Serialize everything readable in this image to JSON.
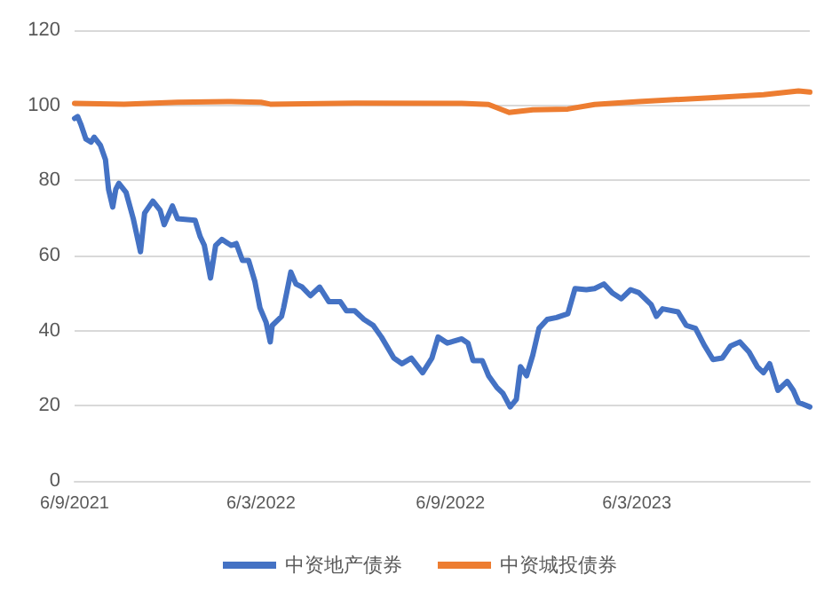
{
  "chart_data": {
    "type": "line",
    "xlim": [
      "2021-09-06",
      "2023-08-21"
    ],
    "xticks": [
      {
        "value": "2021-09-06",
        "label": "6/9/2021"
      },
      {
        "value": "2022-03-06",
        "label": "6/3/2022"
      },
      {
        "value": "2022-09-06",
        "label": "6/9/2022"
      },
      {
        "value": "2023-03-06",
        "label": "6/3/2023"
      }
    ],
    "ylim": [
      0,
      120
    ],
    "yticks": [
      0,
      20,
      40,
      60,
      80,
      100,
      120
    ],
    "grid": "y",
    "legend": "bottom",
    "marker": "none",
    "line_style": "solid",
    "series": [
      {
        "name": "中资地产债券",
        "color": "#4472c4",
        "x": [
          "2021-09-06",
          "2021-09-09",
          "2021-09-12",
          "2021-09-17",
          "2021-09-22",
          "2021-09-25",
          "2021-10-01",
          "2021-10-06",
          "2021-10-09",
          "2021-10-13",
          "2021-10-16",
          "2021-10-19",
          "2021-10-26",
          "2021-11-02",
          "2021-11-09",
          "2021-11-13",
          "2021-11-21",
          "2021-11-28",
          "2021-12-02",
          "2021-12-10",
          "2021-12-15",
          "2022-01-01",
          "2022-01-06",
          "2022-01-10",
          "2022-01-16",
          "2022-01-21",
          "2022-01-27",
          "2022-02-05",
          "2022-02-10",
          "2022-02-16",
          "2022-02-22",
          "2022-02-28",
          "2022-03-05",
          "2022-03-11",
          "2022-03-15",
          "2022-03-17",
          "2022-03-26",
          "2022-03-28",
          "2022-03-31",
          "2022-04-04",
          "2022-04-09",
          "2022-04-15",
          "2022-04-23",
          "2022-05-02",
          "2022-05-11",
          "2022-05-22",
          "2022-05-28",
          "2022-06-05",
          "2022-06-14",
          "2022-06-23",
          "2022-07-01",
          "2022-07-13",
          "2022-07-21",
          "2022-07-30",
          "2022-08-10",
          "2022-08-19",
          "2022-08-25",
          "2022-09-03",
          "2022-09-17",
          "2022-09-23",
          "2022-09-28",
          "2022-10-07",
          "2022-10-13",
          "2022-10-21",
          "2022-10-27",
          "2022-11-03",
          "2022-11-09",
          "2022-11-13",
          "2022-11-19",
          "2022-11-25",
          "2022-12-01",
          "2022-12-09",
          "2022-12-18",
          "2022-12-29",
          "2023-01-05",
          "2023-01-16",
          "2023-01-24",
          "2023-02-02",
          "2023-02-10",
          "2023-02-19",
          "2023-02-28",
          "2023-03-08",
          "2023-03-20",
          "2023-03-25",
          "2023-03-31",
          "2023-04-15",
          "2023-04-23",
          "2023-05-02",
          "2023-05-11",
          "2023-05-19",
          "2023-05-28",
          "2023-06-05",
          "2023-06-14",
          "2023-06-23",
          "2023-07-01",
          "2023-07-07",
          "2023-07-13",
          "2023-07-21",
          "2023-07-30",
          "2023-08-05",
          "2023-08-10",
          "2023-08-21"
        ],
        "values": [
          96.5,
          97,
          95,
          91,
          90.2,
          91.5,
          89.4,
          85.5,
          77.6,
          72.9,
          77.6,
          79.2,
          76.8,
          69.8,
          61,
          71.3,
          74.5,
          72.1,
          68.2,
          73.2,
          69.8,
          69.4,
          65,
          62.7,
          54,
          62.7,
          64.3,
          62.7,
          63.2,
          58.7,
          58.7,
          53.2,
          46.1,
          42.2,
          37,
          41.4,
          43.8,
          46.1,
          50.1,
          55.6,
          52.4,
          51.6,
          49.3,
          51.6,
          47.7,
          47.7,
          45.3,
          45.3,
          43,
          41.4,
          38.3,
          32.7,
          31.2,
          32.7,
          28.8,
          32.7,
          38.3,
          36.7,
          37.8,
          36.7,
          32,
          32,
          28,
          24.9,
          23.3,
          19.7,
          21.7,
          30.4,
          28,
          33.5,
          40.6,
          43,
          43.5,
          44.5,
          51.2,
          50.9,
          51.2,
          52.4,
          50.1,
          48.5,
          50.9,
          50.1,
          46.9,
          43.8,
          45.8,
          45,
          41.4,
          40.6,
          35.9,
          32.3,
          32.7,
          35.9,
          37,
          34.3,
          30.4,
          28.8,
          31.2,
          24.1,
          26.5,
          24.1,
          20.9,
          19.7
        ]
      },
      {
        "name": "中资城投债券",
        "color": "#ed7d31",
        "x": [
          "2021-09-06",
          "2021-10-24",
          "2021-12-15",
          "2022-02-05",
          "2022-03-06",
          "2022-03-15",
          "2022-06-05",
          "2022-09-17",
          "2022-10-13",
          "2022-11-02",
          "2022-11-25",
          "2022-12-29",
          "2023-01-24",
          "2023-03-08",
          "2023-05-16",
          "2023-07-07",
          "2023-08-10",
          "2023-08-21"
        ],
        "values": [
          100.5,
          100.3,
          100.8,
          101,
          100.8,
          100.3,
          100.6,
          100.5,
          100.2,
          98.1,
          98.8,
          99,
          100.2,
          101,
          102,
          102.8,
          103.8,
          103.5
        ]
      }
    ]
  }
}
